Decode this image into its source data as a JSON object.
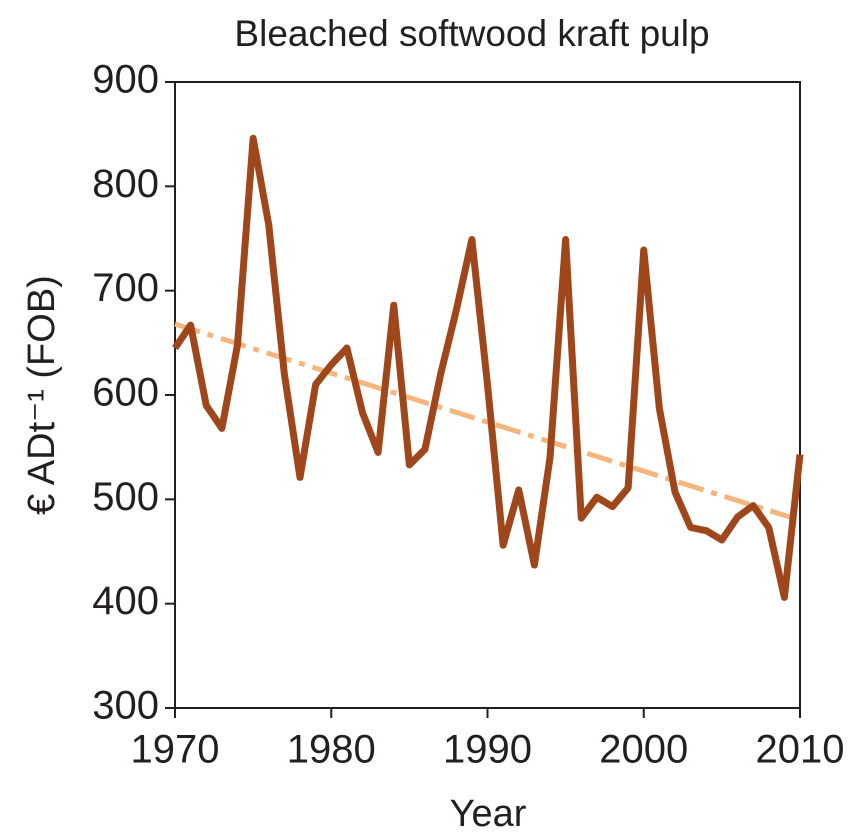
{
  "chart_data": {
    "type": "line",
    "title": "Bleached softwood kraft pulp",
    "xlabel": "Year",
    "ylabel": "€ ADt⁻¹ (FOB)",
    "xlim": [
      1970,
      2010
    ],
    "xticks": [
      1970,
      1980,
      1990,
      2000,
      2010
    ],
    "ylim": [
      300,
      900
    ],
    "yticks": [
      300,
      400,
      500,
      600,
      700,
      800,
      900
    ],
    "series": [
      {
        "color": "#a0461b",
        "style": "solid",
        "x": [
          1970,
          1971,
          1972,
          1973,
          1974,
          1975,
          1976,
          1977,
          1978,
          1979,
          1980,
          1981,
          1982,
          1983,
          1984,
          1985,
          1986,
          1987,
          1988,
          1989,
          1990,
          1991,
          1992,
          1993,
          1994,
          1995,
          1996,
          1997,
          1998,
          1999,
          2000,
          2001,
          2002,
          2003,
          2004,
          2005,
          2006,
          2007,
          2008,
          2009,
          2010
        ],
        "values": [
          645,
          667,
          590,
          568,
          648,
          846,
          763,
          620,
          521,
          610,
          629,
          645,
          583,
          545,
          686,
          533,
          548,
          620,
          681,
          749,
          610,
          456,
          509,
          437,
          540,
          749,
          482,
          502,
          493,
          511,
          739,
          587,
          507,
          473,
          470,
          461,
          483,
          494,
          473,
          406,
          543
        ]
      },
      {
        "color": "#f6b57c",
        "style": "dashdot",
        "x": [
          1970,
          2010
        ],
        "values": [
          668,
          480
        ]
      }
    ]
  }
}
